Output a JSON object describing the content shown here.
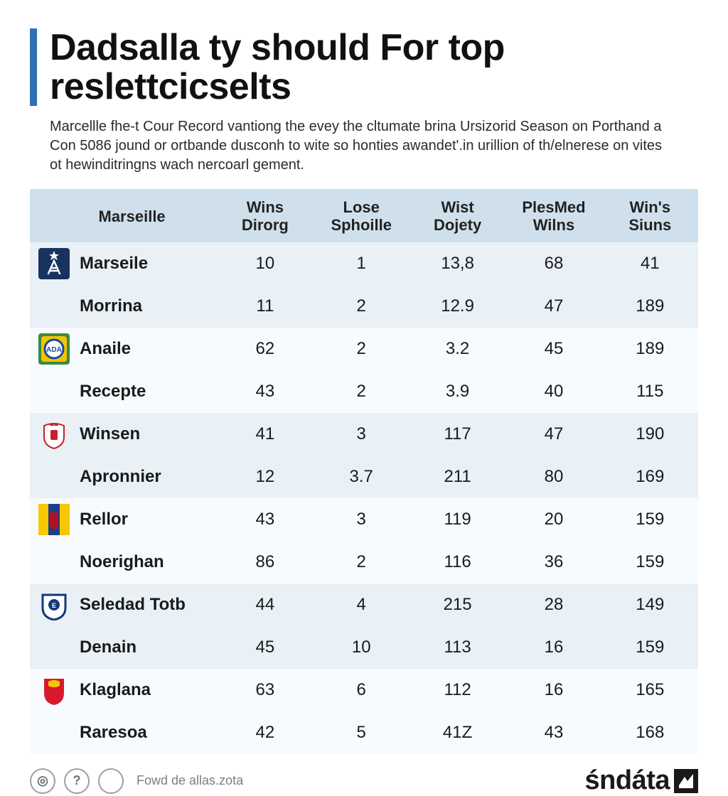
{
  "colors": {
    "accent": "#2f6fb3",
    "header_bg": "#cfe0ec",
    "row_alt_a": "#e9f1f7",
    "row_alt_b": "#f7fbfe",
    "text": "#1a1a1a",
    "muted": "#7a7f85",
    "icon_border": "#9aa0a6"
  },
  "typography": {
    "title_fontsize": 52,
    "title_weight": 800,
    "subtitle_fontsize": 20,
    "table_header_fontsize": 22,
    "table_cell_fontsize": 24,
    "brand_fontsize": 38
  },
  "header": {
    "title": "Dadsalla ty should For top reslettcicselts",
    "subtitle": "Marcellle fhe-t Cour Record vantiong the evey the cltumate brina Ursizorid Season on Porthand a Con 5086 jound or ortbande dusconh to wite so honties awandet'.in urillion of th/elnerese on vites ot hewinditringns wach nercoarl gement."
  },
  "table": {
    "type": "table",
    "columns": [
      {
        "label_line1": "Marseille",
        "label_line2": "",
        "align": "left"
      },
      {
        "label_line1": "Wins",
        "label_line2": "Dirorg",
        "align": "center"
      },
      {
        "label_line1": "Lose",
        "label_line2": "Sphoille",
        "align": "center"
      },
      {
        "label_line1": "Wist",
        "label_line2": "Dojety",
        "align": "center"
      },
      {
        "label_line1": "PlesMed",
        "label_line2": "Wilns",
        "align": "center"
      },
      {
        "label_line1": "Win's",
        "label_line2": "Siuns",
        "align": "center"
      }
    ],
    "row_pairing": "logo spans two rows visually",
    "logos": [
      {
        "name": "marseille-logo",
        "bg": "#18335f",
        "fg": "#ffffff",
        "shape": "tower-star"
      },
      {
        "name": "anaile-logo",
        "bg": "#f3c400",
        "fg": "#1c4aa0",
        "shape": "roundel"
      },
      {
        "name": "winsen-logo",
        "bg": "#ffffff",
        "fg": "#c8202a",
        "shape": "shield-crown"
      },
      {
        "name": "rellor-logo",
        "bg": "#f7c700",
        "fg": "#b4111e",
        "shape": "shield-stripe"
      },
      {
        "name": "seledad-logo",
        "bg": "#ffffff",
        "fg": "#13397a",
        "shape": "shield-crest"
      },
      {
        "name": "klaglana-logo",
        "bg": "#d71a2b",
        "fg": "#f7c700",
        "shape": "shield-plain"
      }
    ],
    "rows": [
      {
        "team": "Marseile",
        "c1": "10",
        "c2": "1",
        "c3": "13,8",
        "c4": "68",
        "c5": "41",
        "logo_idx": 0
      },
      {
        "team": "Morrina",
        "c1": "11",
        "c2": "2",
        "c3": "12.9",
        "c4": "47",
        "c5": "189",
        "logo_idx": 0
      },
      {
        "team": "Anaile",
        "c1": "62",
        "c2": "2",
        "c3": "3.2",
        "c4": "45",
        "c5": "189",
        "logo_idx": 1
      },
      {
        "team": "Recepte",
        "c1": "43",
        "c2": "2",
        "c3": "3.9",
        "c4": "40",
        "c5": "115",
        "logo_idx": 1
      },
      {
        "team": "Winsen",
        "c1": "41",
        "c2": "3",
        "c3": "117",
        "c4": "47",
        "c5": "190",
        "logo_idx": 2
      },
      {
        "team": "Apronnier",
        "c1": "12",
        "c2": "3.7",
        "c3": "211",
        "c4": "80",
        "c5": "169",
        "logo_idx": 2
      },
      {
        "team": "Rellor",
        "c1": "43",
        "c2": "3",
        "c3": "119",
        "c4": "20",
        "c5": "159",
        "logo_idx": 3
      },
      {
        "team": "Noerighan",
        "c1": "86",
        "c2": "2",
        "c3": "116",
        "c4": "36",
        "c5": "159",
        "logo_idx": 3
      },
      {
        "team": "Seledad Totb",
        "c1": "44",
        "c2": "4",
        "c3": "215",
        "c4": "28",
        "c5": "149",
        "logo_idx": 4
      },
      {
        "team": "Denain",
        "c1": "45",
        "c2": "10",
        "c3": "113",
        "c4": "16",
        "c5": "159",
        "logo_idx": 4
      },
      {
        "team": "Klaglana",
        "c1": "63",
        "c2": "6",
        "c3": "112",
        "c4": "16",
        "c5": "165",
        "logo_idx": 5
      },
      {
        "team": "Raresoa",
        "c1": "42",
        "c2": "5",
        "c3": "41Z",
        "c4": "43",
        "c5": "168",
        "logo_idx": 5
      }
    ]
  },
  "footer": {
    "icons": [
      "cc-icon",
      "help-icon",
      "share-icon"
    ],
    "note": "Fowd de allas.zota",
    "brand": "śndáta"
  }
}
